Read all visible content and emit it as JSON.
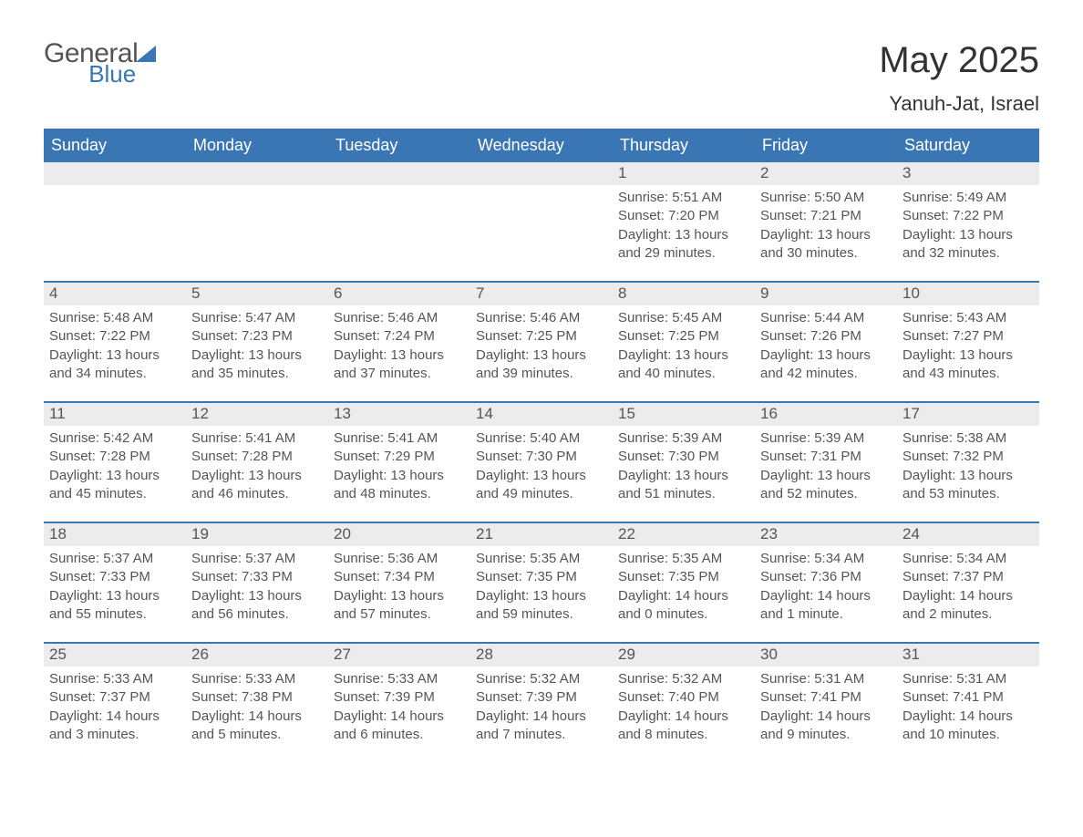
{
  "logo": {
    "word1": "General",
    "word2": "Blue"
  },
  "title": "May 2025",
  "location": "Yanuh-Jat, Israel",
  "day_names": [
    "Sunday",
    "Monday",
    "Tuesday",
    "Wednesday",
    "Thursday",
    "Friday",
    "Saturday"
  ],
  "colors": {
    "brand_blue": "#3a76b4",
    "header_text": "#ffffff",
    "daynum_bg": "#ececec",
    "body_text": "#555555",
    "page_bg": "#ffffff"
  },
  "typography": {
    "title_fontsize": 40,
    "location_fontsize": 22,
    "dayheader_fontsize": 18,
    "daynum_fontsize": 17,
    "detail_fontsize": 15
  },
  "layout": {
    "columns": 7,
    "rows": 5,
    "first_weekday": "Sunday"
  },
  "weeks": [
    [
      {
        "day": null
      },
      {
        "day": null
      },
      {
        "day": null
      },
      {
        "day": null
      },
      {
        "day": 1,
        "sunrise": "Sunrise: 5:51 AM",
        "sunset": "Sunset: 7:20 PM",
        "daylight": "Daylight: 13 hours and 29 minutes."
      },
      {
        "day": 2,
        "sunrise": "Sunrise: 5:50 AM",
        "sunset": "Sunset: 7:21 PM",
        "daylight": "Daylight: 13 hours and 30 minutes."
      },
      {
        "day": 3,
        "sunrise": "Sunrise: 5:49 AM",
        "sunset": "Sunset: 7:22 PM",
        "daylight": "Daylight: 13 hours and 32 minutes."
      }
    ],
    [
      {
        "day": 4,
        "sunrise": "Sunrise: 5:48 AM",
        "sunset": "Sunset: 7:22 PM",
        "daylight": "Daylight: 13 hours and 34 minutes."
      },
      {
        "day": 5,
        "sunrise": "Sunrise: 5:47 AM",
        "sunset": "Sunset: 7:23 PM",
        "daylight": "Daylight: 13 hours and 35 minutes."
      },
      {
        "day": 6,
        "sunrise": "Sunrise: 5:46 AM",
        "sunset": "Sunset: 7:24 PM",
        "daylight": "Daylight: 13 hours and 37 minutes."
      },
      {
        "day": 7,
        "sunrise": "Sunrise: 5:46 AM",
        "sunset": "Sunset: 7:25 PM",
        "daylight": "Daylight: 13 hours and 39 minutes."
      },
      {
        "day": 8,
        "sunrise": "Sunrise: 5:45 AM",
        "sunset": "Sunset: 7:25 PM",
        "daylight": "Daylight: 13 hours and 40 minutes."
      },
      {
        "day": 9,
        "sunrise": "Sunrise: 5:44 AM",
        "sunset": "Sunset: 7:26 PM",
        "daylight": "Daylight: 13 hours and 42 minutes."
      },
      {
        "day": 10,
        "sunrise": "Sunrise: 5:43 AM",
        "sunset": "Sunset: 7:27 PM",
        "daylight": "Daylight: 13 hours and 43 minutes."
      }
    ],
    [
      {
        "day": 11,
        "sunrise": "Sunrise: 5:42 AM",
        "sunset": "Sunset: 7:28 PM",
        "daylight": "Daylight: 13 hours and 45 minutes."
      },
      {
        "day": 12,
        "sunrise": "Sunrise: 5:41 AM",
        "sunset": "Sunset: 7:28 PM",
        "daylight": "Daylight: 13 hours and 46 minutes."
      },
      {
        "day": 13,
        "sunrise": "Sunrise: 5:41 AM",
        "sunset": "Sunset: 7:29 PM",
        "daylight": "Daylight: 13 hours and 48 minutes."
      },
      {
        "day": 14,
        "sunrise": "Sunrise: 5:40 AM",
        "sunset": "Sunset: 7:30 PM",
        "daylight": "Daylight: 13 hours and 49 minutes."
      },
      {
        "day": 15,
        "sunrise": "Sunrise: 5:39 AM",
        "sunset": "Sunset: 7:30 PM",
        "daylight": "Daylight: 13 hours and 51 minutes."
      },
      {
        "day": 16,
        "sunrise": "Sunrise: 5:39 AM",
        "sunset": "Sunset: 7:31 PM",
        "daylight": "Daylight: 13 hours and 52 minutes."
      },
      {
        "day": 17,
        "sunrise": "Sunrise: 5:38 AM",
        "sunset": "Sunset: 7:32 PM",
        "daylight": "Daylight: 13 hours and 53 minutes."
      }
    ],
    [
      {
        "day": 18,
        "sunrise": "Sunrise: 5:37 AM",
        "sunset": "Sunset: 7:33 PM",
        "daylight": "Daylight: 13 hours and 55 minutes."
      },
      {
        "day": 19,
        "sunrise": "Sunrise: 5:37 AM",
        "sunset": "Sunset: 7:33 PM",
        "daylight": "Daylight: 13 hours and 56 minutes."
      },
      {
        "day": 20,
        "sunrise": "Sunrise: 5:36 AM",
        "sunset": "Sunset: 7:34 PM",
        "daylight": "Daylight: 13 hours and 57 minutes."
      },
      {
        "day": 21,
        "sunrise": "Sunrise: 5:35 AM",
        "sunset": "Sunset: 7:35 PM",
        "daylight": "Daylight: 13 hours and 59 minutes."
      },
      {
        "day": 22,
        "sunrise": "Sunrise: 5:35 AM",
        "sunset": "Sunset: 7:35 PM",
        "daylight": "Daylight: 14 hours and 0 minutes."
      },
      {
        "day": 23,
        "sunrise": "Sunrise: 5:34 AM",
        "sunset": "Sunset: 7:36 PM",
        "daylight": "Daylight: 14 hours and 1 minute."
      },
      {
        "day": 24,
        "sunrise": "Sunrise: 5:34 AM",
        "sunset": "Sunset: 7:37 PM",
        "daylight": "Daylight: 14 hours and 2 minutes."
      }
    ],
    [
      {
        "day": 25,
        "sunrise": "Sunrise: 5:33 AM",
        "sunset": "Sunset: 7:37 PM",
        "daylight": "Daylight: 14 hours and 3 minutes."
      },
      {
        "day": 26,
        "sunrise": "Sunrise: 5:33 AM",
        "sunset": "Sunset: 7:38 PM",
        "daylight": "Daylight: 14 hours and 5 minutes."
      },
      {
        "day": 27,
        "sunrise": "Sunrise: 5:33 AM",
        "sunset": "Sunset: 7:39 PM",
        "daylight": "Daylight: 14 hours and 6 minutes."
      },
      {
        "day": 28,
        "sunrise": "Sunrise: 5:32 AM",
        "sunset": "Sunset: 7:39 PM",
        "daylight": "Daylight: 14 hours and 7 minutes."
      },
      {
        "day": 29,
        "sunrise": "Sunrise: 5:32 AM",
        "sunset": "Sunset: 7:40 PM",
        "daylight": "Daylight: 14 hours and 8 minutes."
      },
      {
        "day": 30,
        "sunrise": "Sunrise: 5:31 AM",
        "sunset": "Sunset: 7:41 PM",
        "daylight": "Daylight: 14 hours and 9 minutes."
      },
      {
        "day": 31,
        "sunrise": "Sunrise: 5:31 AM",
        "sunset": "Sunset: 7:41 PM",
        "daylight": "Daylight: 14 hours and 10 minutes."
      }
    ]
  ]
}
